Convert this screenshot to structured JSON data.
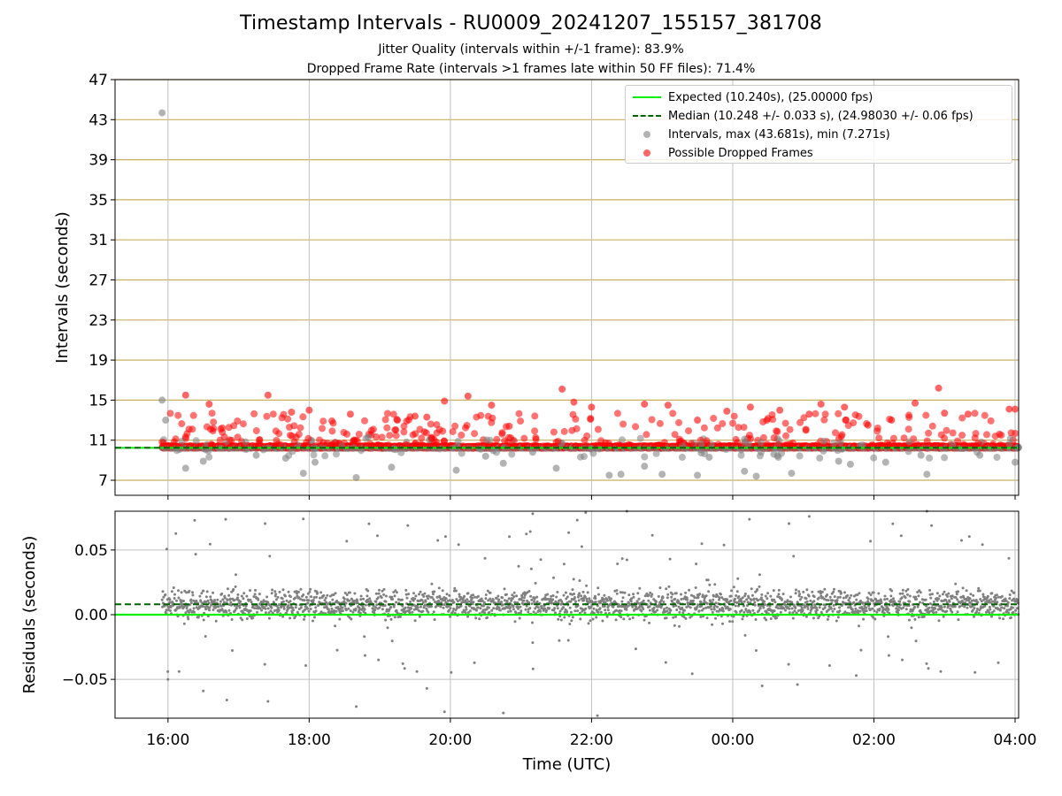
{
  "figure": {
    "title": "Timestamp Intervals - RU0009_20241207_155157_381708",
    "subtitle_1": "Jitter Quality (intervals within +/-1 frame): 83.9%",
    "subtitle_2": "Dropped Frame Rate (intervals >1 frames late within 50 FF files): 71.4%"
  },
  "legend": {
    "expected": "Expected (10.240s), (25.00000 fps)",
    "median": "Median (10.248 +/- 0.033 s), (24.98030 +/- 0.06 fps)",
    "intervals": "Intervals, max (43.681s), min (7.271s)",
    "dropped": "Possible Dropped Frames"
  },
  "colors": {
    "expected": "#00ee00",
    "median": "#006400",
    "intervals": "#808080",
    "dropped": "#ff0000",
    "hgrid": "#c8b060",
    "vgrid": "#c0c0c0"
  },
  "chart_data": [
    {
      "type": "scatter",
      "ylabel": "Intervals (seconds)",
      "xlim": [
        "15:15",
        "04:03"
      ],
      "ylim": [
        5.5,
        47
      ],
      "yticks": [
        "7",
        "11",
        "15",
        "19",
        "23",
        "27",
        "31",
        "35",
        "39",
        "43",
        "47"
      ],
      "xticks": [
        "16:00",
        "18:00",
        "20:00",
        "22:00",
        "00:00",
        "02:00",
        "04:00"
      ],
      "grid": "on",
      "legend_position": "top-right",
      "expected_interval": 10.24,
      "median_interval": 10.248,
      "series": [
        {
          "name": "Intervals, max (43.681s), min (7.271s)",
          "points": [
            [
              "15:55",
              43.68
            ],
            [
              "15:55",
              15.0
            ],
            [
              "15:58",
              13.0
            ],
            [
              "16:15",
              8.2
            ],
            [
              "16:30",
              8.9
            ],
            [
              "17:15",
              9.5
            ],
            [
              "17:40",
              9.2
            ],
            [
              "17:55",
              7.7
            ],
            [
              "18:05",
              8.8
            ],
            [
              "18:40",
              7.27
            ],
            [
              "18:50",
              11.3
            ],
            [
              "19:10",
              8.3
            ],
            [
              "20:05",
              8.0
            ],
            [
              "20:30",
              9.4
            ],
            [
              "20:45",
              8.7
            ],
            [
              "21:10",
              9.8
            ],
            [
              "21:30",
              8.2
            ],
            [
              "22:15",
              7.5
            ],
            [
              "22:25",
              7.6
            ],
            [
              "22:45",
              8.4
            ],
            [
              "23:00",
              7.6
            ],
            [
              "23:30",
              7.5
            ],
            [
              "23:40",
              9.3
            ],
            [
              "00:10",
              7.9
            ],
            [
              "00:20",
              7.4
            ],
            [
              "00:35",
              9.6
            ],
            [
              "00:50",
              7.7
            ],
            [
              "01:30",
              8.9
            ],
            [
              "01:40",
              8.6
            ],
            [
              "02:10",
              8.8
            ],
            [
              "02:40",
              9.5
            ],
            [
              "02:45",
              7.6
            ],
            [
              "03:30",
              9.5
            ],
            [
              "04:00",
              8.8
            ]
          ]
        },
        {
          "name": "Possible Dropped Frames",
          "points": [
            [
              "16:15",
              15.5
            ],
            [
              "16:35",
              14.6
            ],
            [
              "17:25",
              15.5
            ],
            [
              "17:45",
              13.8
            ],
            [
              "18:00",
              14.0
            ],
            [
              "18:35",
              13.6
            ],
            [
              "19:15",
              13.0
            ],
            [
              "19:30",
              13.4
            ],
            [
              "19:40",
              13.3
            ],
            [
              "19:55",
              14.9
            ],
            [
              "20:15",
              15.4
            ],
            [
              "20:35",
              14.5
            ],
            [
              "20:50",
              12.4
            ],
            [
              "21:35",
              16.1
            ],
            [
              "21:45",
              14.8
            ],
            [
              "22:00",
              14.3
            ],
            [
              "22:45",
              14.6
            ],
            [
              "23:05",
              14.5
            ],
            [
              "23:30",
              13.0
            ],
            [
              "23:55",
              13.9
            ],
            [
              "00:15",
              14.3
            ],
            [
              "00:40",
              14.0
            ],
            [
              "01:05",
              13.6
            ],
            [
              "01:15",
              14.6
            ],
            [
              "01:35",
              14.3
            ],
            [
              "01:55",
              12.5
            ],
            [
              "02:15",
              13.0
            ],
            [
              "02:35",
              14.7
            ],
            [
              "02:55",
              16.2
            ],
            [
              "03:00",
              13.7
            ],
            [
              "03:20",
              13.6
            ],
            [
              "03:55",
              14.1
            ],
            [
              "04:00",
              14.1
            ]
          ]
        }
      ]
    },
    {
      "type": "scatter",
      "xlabel": "Time (UTC)",
      "ylabel": "Residuals (seconds)",
      "xlim": [
        "15:15",
        "04:03"
      ],
      "ylim": [
        -0.08,
        0.08
      ],
      "yticks": [
        "0.05",
        "0.00",
        "−0.05"
      ],
      "xticks": [
        "16:00",
        "18:00",
        "20:00",
        "22:00",
        "00:00",
        "02:00",
        "04:00"
      ],
      "grid": "on",
      "expected_residual": 0.0,
      "median_residual": 0.008,
      "band_center": 0.008,
      "band_spread": 0.012,
      "outliers": [
        [
          "16:00",
          -0.05
        ],
        [
          "16:30",
          -0.059
        ],
        [
          "16:50",
          -0.066
        ],
        [
          "17:25",
          -0.067
        ],
        [
          "17:55",
          0.074
        ],
        [
          "18:40",
          -0.071
        ],
        [
          "19:40",
          -0.057
        ],
        [
          "19:55",
          -0.075
        ],
        [
          "20:45",
          -0.076
        ],
        [
          "21:10",
          0.078
        ],
        [
          "21:55",
          0.079
        ],
        [
          "22:05",
          -0.078
        ],
        [
          "22:30",
          0.08
        ],
        [
          "00:25",
          -0.055
        ],
        [
          "00:55",
          -0.054
        ],
        [
          "01:05",
          0.076
        ],
        [
          "01:45",
          -0.047
        ],
        [
          "02:45",
          0.08
        ]
      ]
    }
  ]
}
